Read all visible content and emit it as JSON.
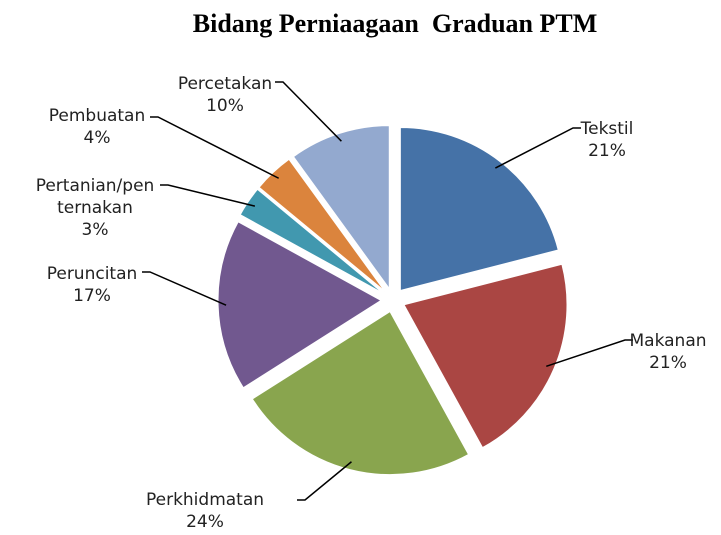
{
  "chart_data": {
    "type": "pie",
    "title": "Bidang Perniaagaan  Graduan PTM",
    "categories": [
      "Tekstil",
      "Makanan",
      "Perkhidmatan",
      "Peruncitan",
      "Pertanian/penternakan",
      "Pembuatan",
      "Percetakan"
    ],
    "values": [
      21,
      21,
      24,
      17,
      3,
      4,
      10
    ],
    "value_labels": [
      "21%",
      "21%",
      "24%",
      "17%",
      "3%",
      "4%",
      "10%"
    ],
    "colors": [
      "#4572a7",
      "#aa4643",
      "#89a54e",
      "#71588f",
      "#4198af",
      "#db843d",
      "#93a9cf"
    ]
  }
}
